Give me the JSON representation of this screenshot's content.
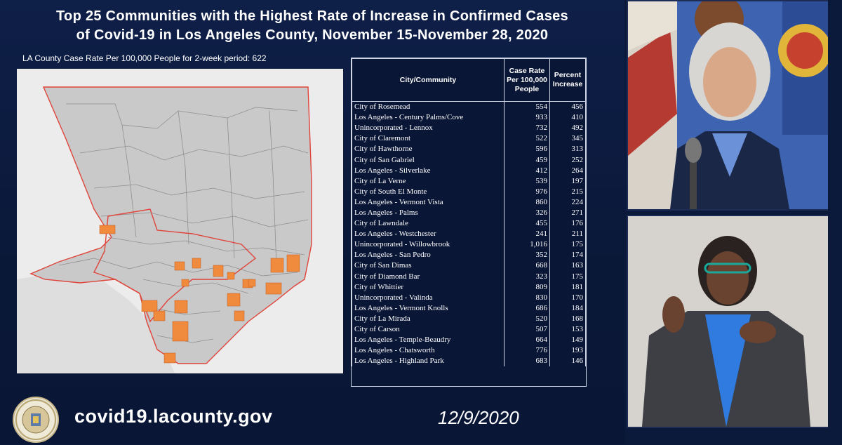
{
  "slide": {
    "title_line1": "Top 25 Communities with the Highest Rate of Increase in Confirmed Cases",
    "title_line2": "of Covid-19 in Los Angeles County, November 15-November 28, 2020",
    "county_rate_note": "LA County Case Rate Per 100,000 People for 2-week period: 622"
  },
  "table": {
    "headers": {
      "community": "City/Community",
      "case_rate": "Case Rate Per 100,000 People",
      "percent_increase": "Percent Increase"
    },
    "rows": [
      {
        "name": "City of Rosemead",
        "rate": "554",
        "pct": "456"
      },
      {
        "name": "Los Angeles - Century Palms/Cove",
        "rate": "933",
        "pct": "410"
      },
      {
        "name": "Unincorporated - Lennox",
        "rate": "732",
        "pct": "492"
      },
      {
        "name": "City of Claremont",
        "rate": "522",
        "pct": "345"
      },
      {
        "name": "City of Hawthorne",
        "rate": "596",
        "pct": "313"
      },
      {
        "name": "City of San Gabriel",
        "rate": "459",
        "pct": "252"
      },
      {
        "name": "Los Angeles - Silverlake",
        "rate": "412",
        "pct": "264"
      },
      {
        "name": "City of La Verne",
        "rate": "539",
        "pct": "197"
      },
      {
        "name": "City of South El Monte",
        "rate": "976",
        "pct": "215"
      },
      {
        "name": "Los Angeles - Vermont Vista",
        "rate": "860",
        "pct": "224"
      },
      {
        "name": "Los Angeles - Palms",
        "rate": "326",
        "pct": "271"
      },
      {
        "name": "City of Lawndale",
        "rate": "455",
        "pct": "176"
      },
      {
        "name": "Los Angeles - Westchester",
        "rate": "241",
        "pct": "211"
      },
      {
        "name": "Unincorporated - Willowbrook",
        "rate": "1,016",
        "pct": "175"
      },
      {
        "name": "Los Angeles - San Pedro",
        "rate": "352",
        "pct": "174"
      },
      {
        "name": "City of San Dimas",
        "rate": "668",
        "pct": "163"
      },
      {
        "name": "City of Diamond Bar",
        "rate": "323",
        "pct": "175"
      },
      {
        "name": "City of Whittier",
        "rate": "809",
        "pct": "181"
      },
      {
        "name": "Unincorporated - Valinda",
        "rate": "830",
        "pct": "170"
      },
      {
        "name": "Los Angeles - Vermont Knolls",
        "rate": "686",
        "pct": "184"
      },
      {
        "name": "City of La Mirada",
        "rate": "520",
        "pct": "168"
      },
      {
        "name": "City of Carson",
        "rate": "507",
        "pct": "153"
      },
      {
        "name": "Los Angeles - Temple-Beaudry",
        "rate": "664",
        "pct": "149"
      },
      {
        "name": "Los Angeles - Chatsworth",
        "rate": "776",
        "pct": "193"
      },
      {
        "name": "Los Angeles - Highland Park",
        "rate": "683",
        "pct": "146"
      }
    ]
  },
  "footer": {
    "url": "covid19.lacounty.gov",
    "date": "12/9/2020"
  },
  "colors": {
    "background": "#0b1a3a",
    "map_fill": "#c9c9c9",
    "highlight": "#f08a3c",
    "boundary": "#e0443a"
  }
}
